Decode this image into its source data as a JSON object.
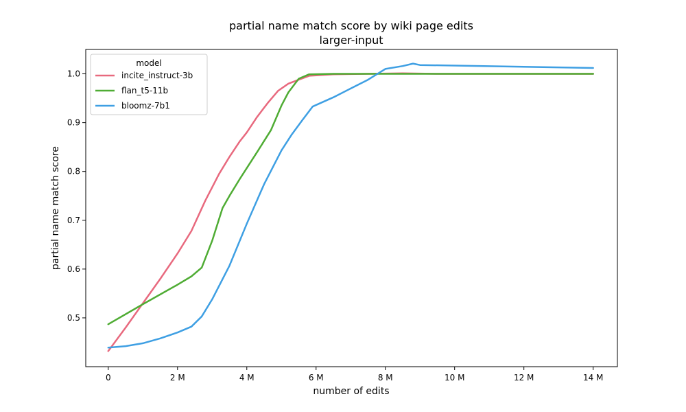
{
  "chart_data": {
    "type": "line",
    "title": "partial name match score by wiki page edits",
    "subtitle": "larger-input",
    "xlabel": "number of edits",
    "ylabel": "partial name match score",
    "xlim": [
      -650000,
      14700000
    ],
    "ylim": [
      0.4,
      1.05
    ],
    "x_ticks": [
      0,
      2000000,
      4000000,
      6000000,
      8000000,
      10000000,
      12000000,
      14000000
    ],
    "x_tick_labels": [
      "0",
      "2 M",
      "4 M",
      "6 M",
      "8 M",
      "10 M",
      "12 M",
      "14 M"
    ],
    "y_ticks": [
      0.5,
      0.6,
      0.7,
      0.8,
      0.9,
      1.0
    ],
    "y_tick_labels": [
      "0.5",
      "0.6",
      "0.7",
      "0.8",
      "0.9",
      "1.0"
    ],
    "grid": false,
    "legend": {
      "title": "model",
      "placement": "top-left"
    },
    "series": [
      {
        "name": "incite_instruct-3b",
        "color": "#e8697e",
        "x": [
          0,
          500000,
          1000000,
          1500000,
          2000000,
          2400000,
          2800000,
          3200000,
          3500000,
          3800000,
          4000000,
          4300000,
          4600000,
          4900000,
          5200000,
          5500000,
          5800000,
          6500000,
          7500000,
          8500000,
          9500000,
          14000000
        ],
        "y": [
          0.432,
          0.48,
          0.53,
          0.58,
          0.632,
          0.678,
          0.74,
          0.795,
          0.83,
          0.862,
          0.88,
          0.912,
          0.94,
          0.965,
          0.98,
          0.988,
          0.996,
          0.999,
          1.0,
          1.001,
          1.0,
          1.0
        ]
      },
      {
        "name": "flan_t5-11b",
        "color": "#4fac34",
        "x": [
          0,
          1000000,
          2000000,
          2400000,
          2700000,
          3000000,
          3300000,
          3500000,
          3800000,
          4000000,
          4300000,
          4700000,
          5000000,
          5200000,
          5500000,
          5800000,
          6500000,
          8000000,
          10000000,
          14000000
        ],
        "y": [
          0.487,
          0.528,
          0.568,
          0.585,
          0.603,
          0.658,
          0.725,
          0.75,
          0.785,
          0.807,
          0.84,
          0.885,
          0.935,
          0.962,
          0.99,
          0.999,
          1.0,
          1.0,
          1.0,
          1.0
        ]
      },
      {
        "name": "bloomz-7b1",
        "color": "#3e9fe3",
        "x": [
          0,
          500000,
          1000000,
          1500000,
          2000000,
          2400000,
          2700000,
          3000000,
          3500000,
          4000000,
          4500000,
          5000000,
          5300000,
          5600000,
          5900000,
          6500000,
          7000000,
          7500000,
          8000000,
          8500000,
          8800000,
          9000000,
          10000000,
          14000000
        ],
        "y": [
          0.439,
          0.442,
          0.448,
          0.458,
          0.47,
          0.482,
          0.503,
          0.538,
          0.607,
          0.693,
          0.774,
          0.843,
          0.876,
          0.905,
          0.933,
          0.952,
          0.97,
          0.988,
          1.01,
          1.016,
          1.021,
          1.018,
          1.017,
          1.012
        ]
      }
    ]
  }
}
